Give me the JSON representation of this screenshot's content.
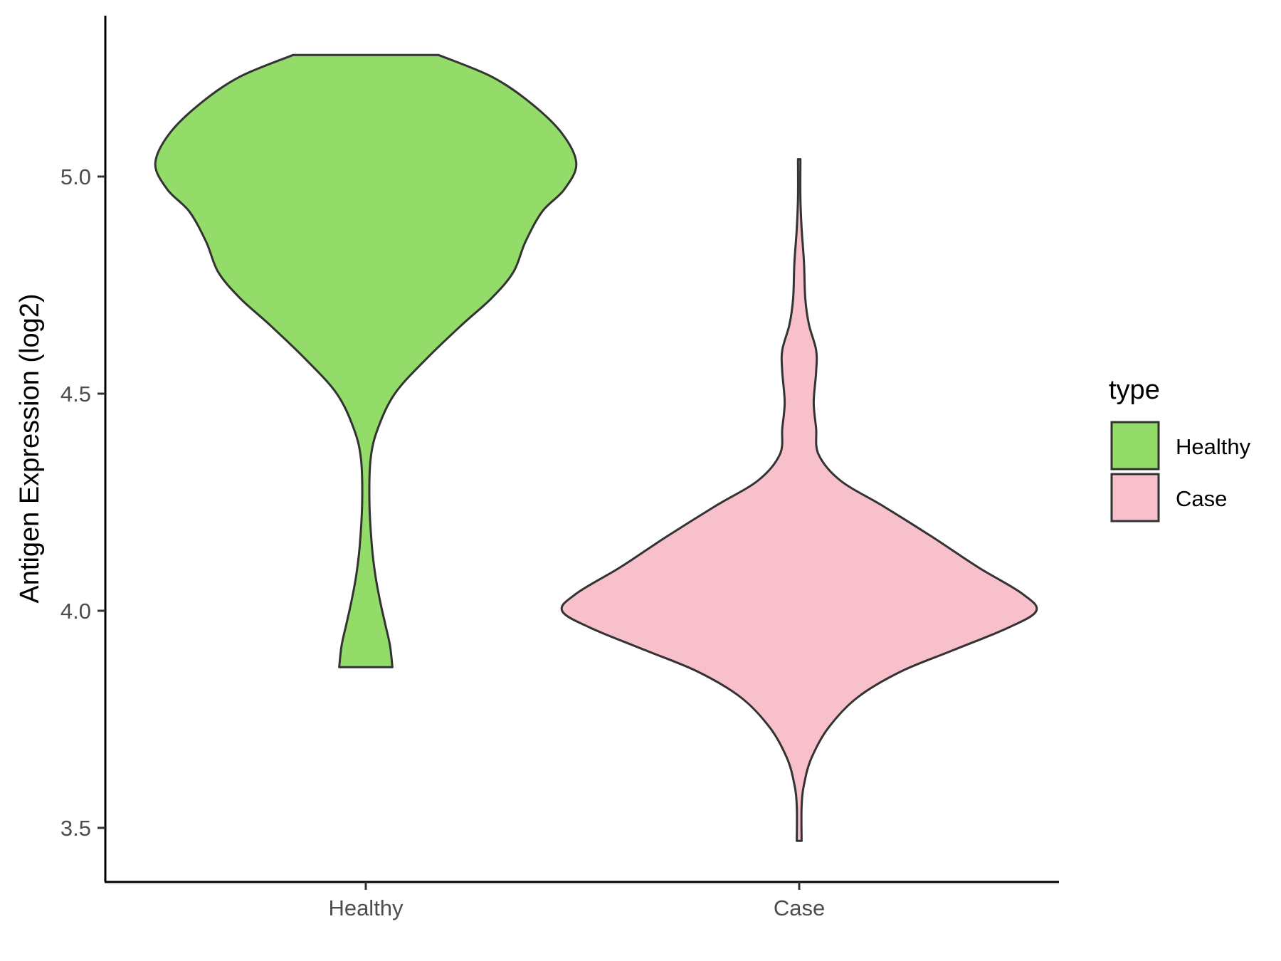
{
  "chart_data": {
    "type": "violin",
    "ylabel": "Antigen Expression (log2)",
    "xlabel": "",
    "ylim": [
      3.37,
      5.4
    ],
    "y_ticks": [
      "3.5",
      "4.0",
      "4.5",
      "5.0"
    ],
    "categories": [
      "Healthy",
      "Case"
    ],
    "legend": {
      "title": "type",
      "placement": "right",
      "entries": [
        {
          "label": "Healthy",
          "color": "#93dc6a"
        },
        {
          "label": "Case",
          "color": "#f7c0cb"
        }
      ]
    },
    "series": [
      {
        "category": "Healthy",
        "color": "#93dc6a",
        "y_min": 3.87,
        "y_max": 5.28,
        "max_half_width": 1.0,
        "profile": [
          [
            3.87,
            0.11
          ],
          [
            3.92,
            0.1
          ],
          [
            3.97,
            0.08
          ],
          [
            4.02,
            0.06
          ],
          [
            4.08,
            0.04
          ],
          [
            4.15,
            0.025
          ],
          [
            4.25,
            0.015
          ],
          [
            4.35,
            0.02
          ],
          [
            4.42,
            0.05
          ],
          [
            4.5,
            0.12
          ],
          [
            4.58,
            0.25
          ],
          [
            4.66,
            0.4
          ],
          [
            4.72,
            0.52
          ],
          [
            4.78,
            0.61
          ],
          [
            4.85,
            0.66
          ],
          [
            4.92,
            0.73
          ],
          [
            4.97,
            0.82
          ],
          [
            5.03,
            0.87
          ],
          [
            5.1,
            0.81
          ],
          [
            5.17,
            0.68
          ],
          [
            5.23,
            0.52
          ],
          [
            5.28,
            0.3
          ]
        ]
      },
      {
        "category": "Case",
        "color": "#f7c0cb",
        "y_min": 3.47,
        "y_max": 5.04,
        "max_half_width": 1.0,
        "profile": [
          [
            3.47,
            0.01
          ],
          [
            3.55,
            0.01
          ],
          [
            3.6,
            0.02
          ],
          [
            3.66,
            0.05
          ],
          [
            3.73,
            0.12
          ],
          [
            3.8,
            0.24
          ],
          [
            3.86,
            0.42
          ],
          [
            3.91,
            0.64
          ],
          [
            3.96,
            0.86
          ],
          [
            4.0,
            0.98
          ],
          [
            4.04,
            0.92
          ],
          [
            4.1,
            0.74
          ],
          [
            4.17,
            0.55
          ],
          [
            4.24,
            0.35
          ],
          [
            4.3,
            0.17
          ],
          [
            4.36,
            0.08
          ],
          [
            4.42,
            0.07
          ],
          [
            4.48,
            0.06
          ],
          [
            4.55,
            0.07
          ],
          [
            4.6,
            0.07
          ],
          [
            4.66,
            0.04
          ],
          [
            4.72,
            0.025
          ],
          [
            4.8,
            0.02
          ],
          [
            4.88,
            0.01
          ],
          [
            4.95,
            0.005
          ],
          [
            5.04,
            0.005
          ]
        ]
      }
    ]
  }
}
